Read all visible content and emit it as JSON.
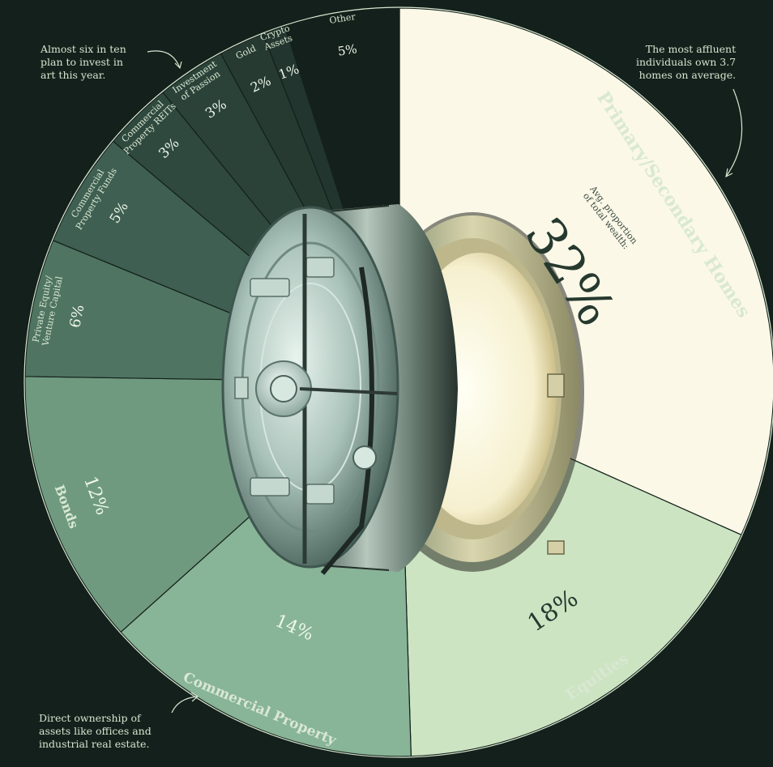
{
  "chart_data": {
    "type": "pie",
    "categories": [
      "Primary/Secondary Homes",
      "Equities",
      "Commercial Property",
      "Bonds",
      "Private Equity/ Venture Capital",
      "Commercial Property Funds",
      "Commercial Property REITs",
      "Investment of Passion",
      "Gold",
      "Crypto Assets",
      "Other"
    ],
    "values": [
      32,
      18,
      14,
      12,
      6,
      5,
      3,
      3,
      2,
      1,
      5
    ],
    "value_labels": [
      "32%",
      "18%",
      "14%",
      "12%",
      "6%",
      "5%",
      "3%",
      "3%",
      "2%",
      "1%",
      "5%"
    ],
    "colors": [
      "#fbf8e7",
      "#cce4c2",
      "#88b497",
      "#6f9a80",
      "#4f7462",
      "#3e5f51",
      "#2f493f",
      "#2b4239",
      "#263a32",
      "#22352e",
      "#14201b"
    ],
    "label_lines": [
      [
        "Primary/Secondary Homes"
      ],
      [
        "Equities"
      ],
      [
        "Commercial Property"
      ],
      [
        "Bonds"
      ],
      [
        "Private Equity/",
        "Venture Capital"
      ],
      [
        "Commercial",
        "Property Funds"
      ],
      [
        "Commercial",
        "Property REITs"
      ],
      [
        "Investment",
        "of Passion"
      ],
      [
        "Gold"
      ],
      [
        "Crypto",
        "Assets"
      ],
      [
        "Other"
      ]
    ],
    "center_caption": [
      "Avg. proportion",
      "of total wealth:"
    ]
  },
  "notes": {
    "art": [
      "Almost six in ten",
      "plan to invest in",
      "art this year."
    ],
    "homes": [
      "The most affluent",
      "individuals own 3.7",
      "homes on average."
    ],
    "commercial": [
      "Direct ownership of",
      "assets like offices and",
      "industrial real estate."
    ]
  }
}
